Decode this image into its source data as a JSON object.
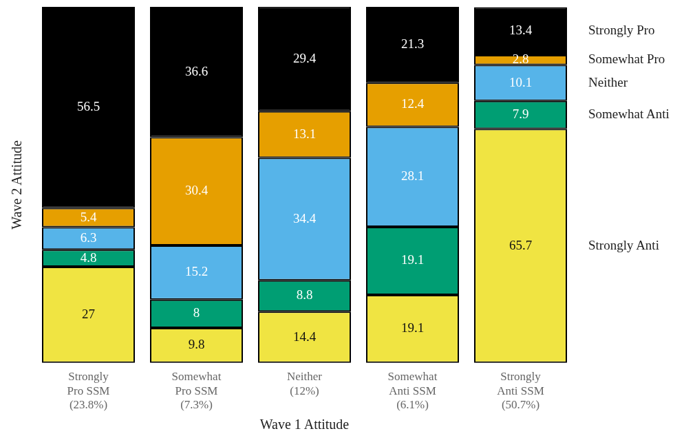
{
  "chart_data": {
    "type": "bar",
    "stacked": true,
    "xlabel": "Wave 1 Attitude",
    "ylabel": "Wave 2 Attitude",
    "categories": [
      "Strongly Pro SSM (23.8%)",
      "Somewhat Pro SSM (7.3%)",
      "Neither (12%)",
      "Somewhat Anti SSM (6.1%)",
      "Strongly Anti SSM (50.7%)"
    ],
    "series": [
      {
        "name": "Strongly Anti",
        "color": "#f0e442",
        "values": [
          27,
          9.8,
          14.4,
          19.1,
          65.7
        ]
      },
      {
        "name": "Somewhat Anti",
        "color": "#009e73",
        "values": [
          4.8,
          8,
          8.8,
          19.1,
          7.9
        ]
      },
      {
        "name": "Neither",
        "color": "#56b4e9",
        "values": [
          6.3,
          15.2,
          34.4,
          28.1,
          10.1
        ]
      },
      {
        "name": "Somewhat Pro",
        "color": "#e69f00",
        "values": [
          5.4,
          30.4,
          13.1,
          12.4,
          2.8
        ]
      },
      {
        "name": "Strongly Pro",
        "color": "#000000",
        "values": [
          56.5,
          36.6,
          29.4,
          21.3,
          13.4
        ]
      }
    ],
    "ylim": [
      0,
      100
    ],
    "tick_labels": "x",
    "grid": false,
    "legend": "right",
    "data_labels": true
  }
}
